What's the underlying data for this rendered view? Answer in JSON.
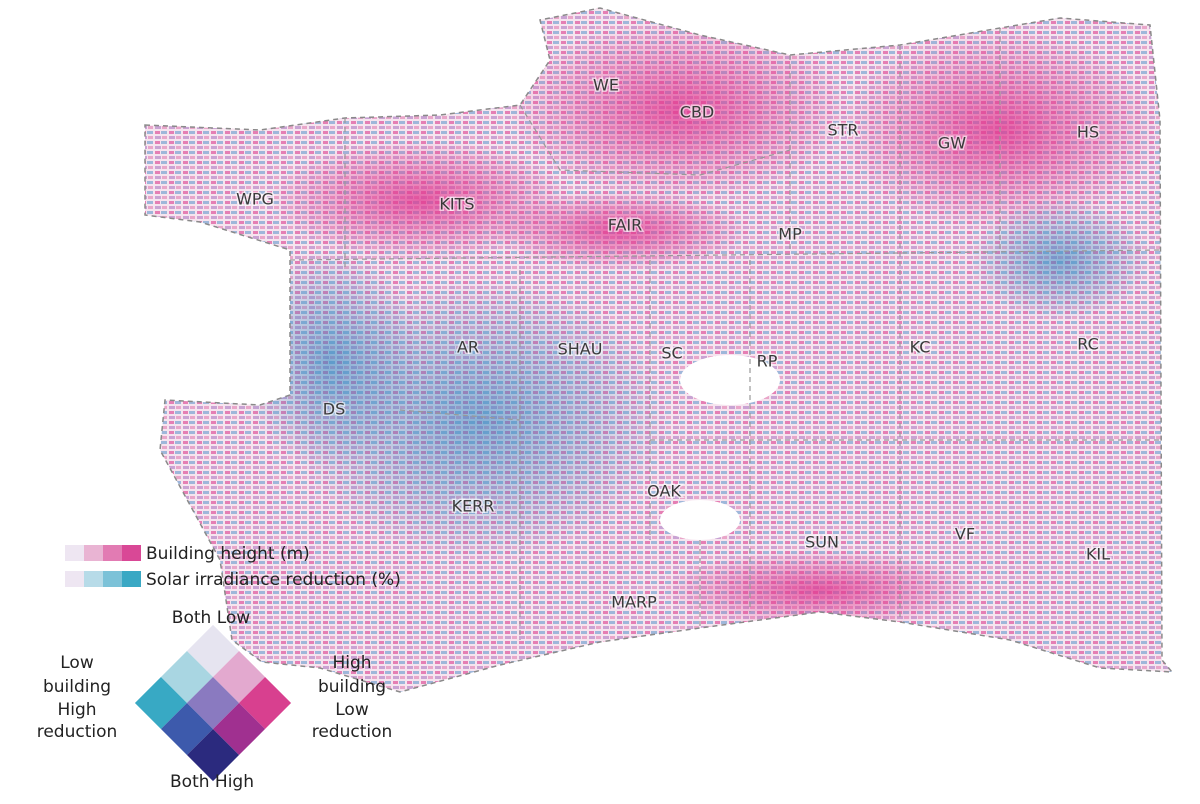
{
  "map": {
    "neighbourhoods": [
      "WE",
      "CBD",
      "STR",
      "GW",
      "HS",
      "WPG",
      "KITS",
      "FAIR",
      "MP",
      "AR",
      "SHAU",
      "SC",
      "RP",
      "KC",
      "RC",
      "DS",
      "OAK",
      "KERR",
      "SUN",
      "VF",
      "KIL",
      "MARP"
    ]
  },
  "legend": {
    "building_height": "Building height (m)",
    "solar_reduction": "Solar irradiance reduction (%)",
    "top": "Both Low",
    "bottom": "Both High",
    "left": [
      "Low",
      "building",
      "High",
      "reduction"
    ],
    "right": [
      "High",
      "building",
      "Low",
      "reduction"
    ]
  }
}
